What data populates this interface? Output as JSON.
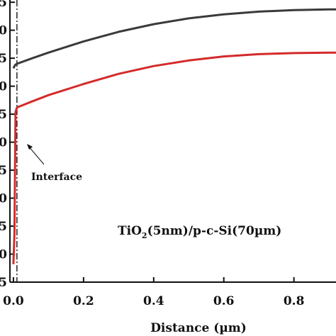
{
  "chart_data": {
    "type": "line",
    "xlabel": "Distance (µm)",
    "x_ticks": [
      "0.0",
      "0.2",
      "0.4",
      "0.6",
      "0.8"
    ],
    "y_ticks_visible": [
      "5",
      "0",
      "5",
      "0",
      "5",
      "0",
      "5",
      "0",
      "5",
      "0",
      "5"
    ],
    "xlim": [
      -0.01,
      0.92
    ],
    "interface_x": 0.01,
    "annotation": "Interface",
    "sample_label": {
      "pre": "TiO",
      "sub": "2",
      "post": "(5nm)/p-c-Si(70µm)"
    },
    "series": [
      {
        "color": "#3a3a3a",
        "x": [
          0.0,
          0.005,
          0.01,
          0.05,
          0.1,
          0.2,
          0.3,
          0.4,
          0.5,
          0.6,
          0.7,
          0.8,
          0.9,
          0.92
        ],
        "y": [
          9.55,
          9.7,
          9.75,
          9.98,
          10.25,
          10.75,
          11.18,
          11.52,
          11.78,
          11.96,
          12.08,
          12.15,
          12.18,
          12.18
        ]
      },
      {
        "color": "#d42a2a",
        "x": [
          0.0,
          0.003,
          0.006,
          0.01,
          0.05,
          0.1,
          0.2,
          0.3,
          0.4,
          0.5,
          0.6,
          0.7,
          0.8,
          0.9,
          0.92
        ],
        "y": [
          0.8,
          2.2,
          7.6,
          7.8,
          8.05,
          8.35,
          8.85,
          9.3,
          9.65,
          9.9,
          10.08,
          10.18,
          10.23,
          10.25,
          10.25
        ]
      }
    ],
    "ylim": [
      0,
      12.6
    ]
  }
}
